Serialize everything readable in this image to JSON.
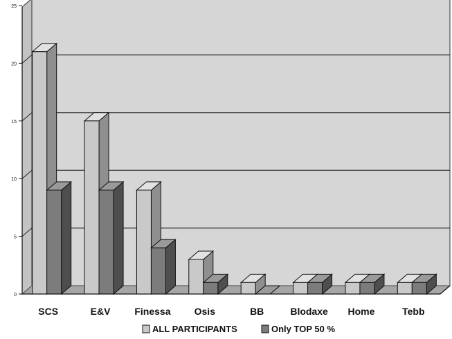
{
  "chart_data": {
    "type": "bar",
    "categories": [
      "SCS",
      "E&V",
      "Finessa",
      "Osis",
      "BB",
      "Blodaxe",
      "Home",
      "Tebb"
    ],
    "series": [
      {
        "name": "ALL PARTICIPANTS",
        "values": [
          21,
          15,
          9,
          3,
          1,
          1,
          1,
          1
        ]
      },
      {
        "name": "Only TOP 50 %",
        "values": [
          9,
          9,
          4,
          1,
          0,
          1,
          1,
          1
        ]
      }
    ],
    "ylim": [
      0,
      25
    ],
    "yticks": [
      0,
      5,
      10,
      15,
      20,
      25
    ],
    "gridlines": [
      5,
      10,
      15,
      20
    ],
    "grid": true,
    "legend": "bottom",
    "three_d": true,
    "title": "",
    "xlabel": "",
    "ylabel": ""
  },
  "colors": {
    "series_front": [
      "#c9c9c9",
      "#7c7c7c"
    ],
    "series_side": [
      "#8f8f8f",
      "#4e4e4e"
    ],
    "series_top": [
      "#e2e2e2",
      "#9a9a9a"
    ],
    "wall_back": "#d6d6d6",
    "wall_side": "#c3c3c3",
    "floor": "#a6a6a6",
    "grid": "#222222"
  }
}
